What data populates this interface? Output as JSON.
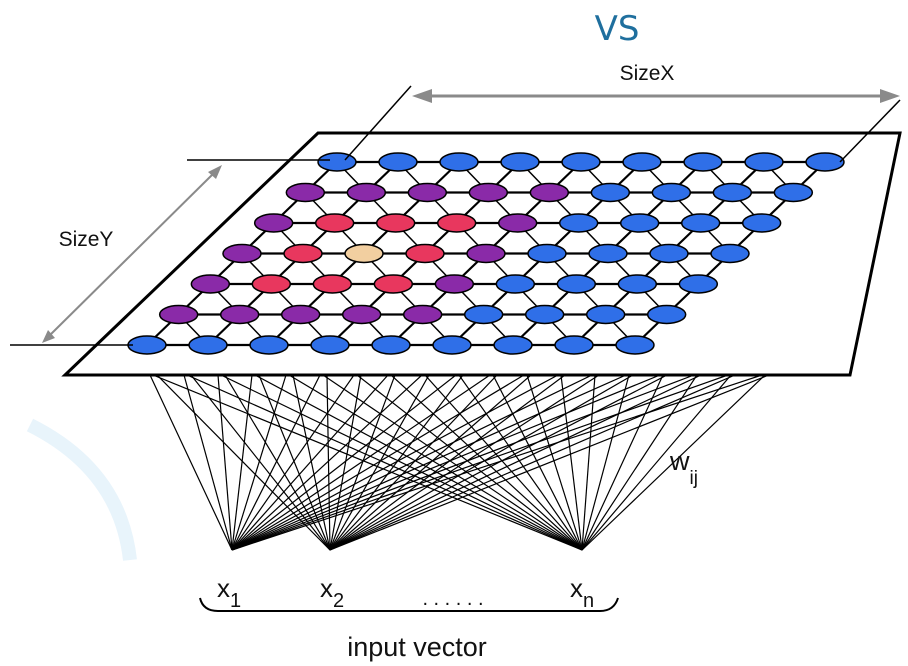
{
  "title": "VS",
  "size_x_label": "SizeX",
  "size_y_label": "SizeY",
  "weight_label": {
    "base": "w",
    "sub": "ij"
  },
  "inputs": [
    {
      "base": "x",
      "sub": "1"
    },
    {
      "base": "x",
      "sub": "2"
    },
    {
      "base": "x",
      "sub": "n"
    }
  ],
  "ellipsis": ". . . . . .",
  "input_vector_label": "input vector",
  "grid": {
    "rows": 7,
    "row_counts": [
      9,
      9,
      9,
      9,
      9,
      9,
      9
    ],
    "colors": {
      "B": "#2f6fe8",
      "P": "#8a2aa8",
      "R": "#e8375e",
      "W": "#f2cfa0"
    },
    "pattern": [
      "BBBBBBBBB",
      "PPPPPBBBB",
      "PRRRPBBBB",
      "PRWRPBBBB",
      "PRRRPBBBB",
      "PPPPPBBBB",
      "BBBBBBBBB"
    ]
  }
}
